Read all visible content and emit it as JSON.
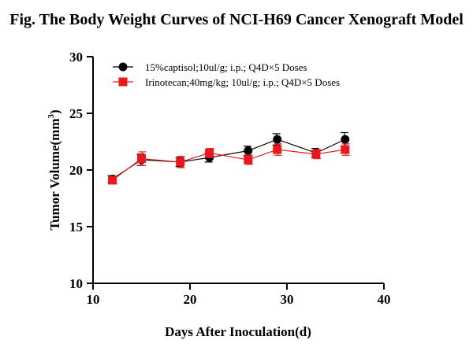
{
  "chart_data": {
    "type": "line",
    "title": "Fig. The Body Weight Curves of NCI-H69 Cancer Xenograft Model",
    "xlabel": "Days After Inoculation(d)",
    "ylabel_main": "Tumor Volume(mm",
    "ylabel_sup": "3",
    "ylabel_close": ")",
    "xlim": [
      10,
      40
    ],
    "ylim": [
      10,
      30
    ],
    "xticks": [
      10,
      20,
      30,
      40
    ],
    "yticks": [
      10,
      15,
      20,
      25,
      30
    ],
    "legend_position": "top-left",
    "series": [
      {
        "name": "15%captisol;10ul/g; i.p.; Q4D×5 Doses",
        "color": "#000000",
        "marker": "circle",
        "x": [
          12,
          15,
          19,
          22,
          26,
          29,
          33,
          36
        ],
        "y": [
          19.2,
          20.9,
          20.7,
          21.1,
          21.7,
          22.7,
          21.5,
          22.7
        ],
        "err": [
          0.3,
          0.5,
          0.4,
          0.4,
          0.4,
          0.5,
          0.4,
          0.6
        ]
      },
      {
        "name": "Irinotecan;40mg/kg; 10ul/g; i.p.; Q4D×5 Doses",
        "color": "#e8191c",
        "marker": "square",
        "x": [
          12,
          15,
          19,
          22,
          26,
          29,
          33,
          36
        ],
        "y": [
          19.1,
          21.0,
          20.7,
          21.5,
          20.9,
          21.8,
          21.4,
          21.8
        ],
        "err": [
          0.3,
          0.6,
          0.5,
          0.4,
          0.4,
          0.5,
          0.4,
          0.5
        ]
      }
    ]
  }
}
